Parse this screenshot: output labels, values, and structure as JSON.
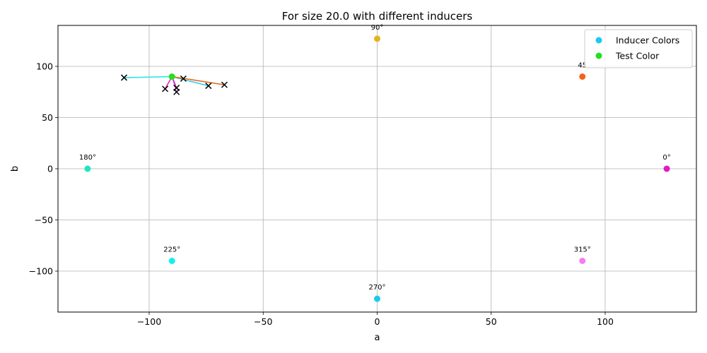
{
  "chart_data": {
    "type": "scatter",
    "title": "For size 20.0 with different inducers",
    "xlabel": "a",
    "ylabel": "b",
    "xlim": [
      -140,
      140
    ],
    "ylim": [
      -140,
      140
    ],
    "xticks": [
      -100,
      -50,
      0,
      50,
      100
    ],
    "yticks": [
      -100,
      -50,
      0,
      50,
      100
    ],
    "xtick_labels": [
      "−100",
      "−50",
      "0",
      "50",
      "100"
    ],
    "ytick_labels": [
      "−100",
      "−50",
      "0",
      "50",
      "100"
    ],
    "grid": true,
    "legend_position": "top-right",
    "legend": [
      {
        "label": "Inducer Colors",
        "color": "#1ec8f0"
      },
      {
        "label": "Test Color",
        "color": "#22e01a"
      }
    ],
    "inducers": [
      {
        "label": "0°",
        "a": 127,
        "b": 0,
        "color": "#e418c8"
      },
      {
        "label": "45",
        "a": 90,
        "b": 90,
        "color": "#f5601e"
      },
      {
        "label": "90°",
        "a": 0,
        "b": 127,
        "color": "#e0b420"
      },
      {
        "label": "180°",
        "a": -127,
        "b": 0,
        "color": "#1ee6c0"
      },
      {
        "label": "225°",
        "a": -90,
        "b": -90,
        "color": "#14f0f0"
      },
      {
        "label": "270°",
        "a": 0,
        "b": -127,
        "color": "#1ec8f0"
      },
      {
        "label": "315°",
        "a": 90,
        "b": -90,
        "color": "#f57cf0"
      }
    ],
    "test_color": {
      "a": -90,
      "b": 90,
      "color": "#22e01a"
    },
    "shift_lines": [
      {
        "to_a": -111,
        "to_b": 89,
        "color": "#1ee6e6"
      },
      {
        "to_a": -74,
        "to_b": 81,
        "color": "#1ec8f0"
      },
      {
        "to_a": -85,
        "to_b": 88,
        "color": "#f5601e"
      },
      {
        "to_a": -67,
        "to_b": 82,
        "color": "#e06a1a"
      },
      {
        "to_a": -93,
        "to_b": 78,
        "color": "#e418c8"
      },
      {
        "to_a": -88,
        "to_b": 75,
        "color": "#f57cf0"
      },
      {
        "to_a": -88,
        "to_b": 79,
        "color": "#c020d0"
      }
    ]
  }
}
